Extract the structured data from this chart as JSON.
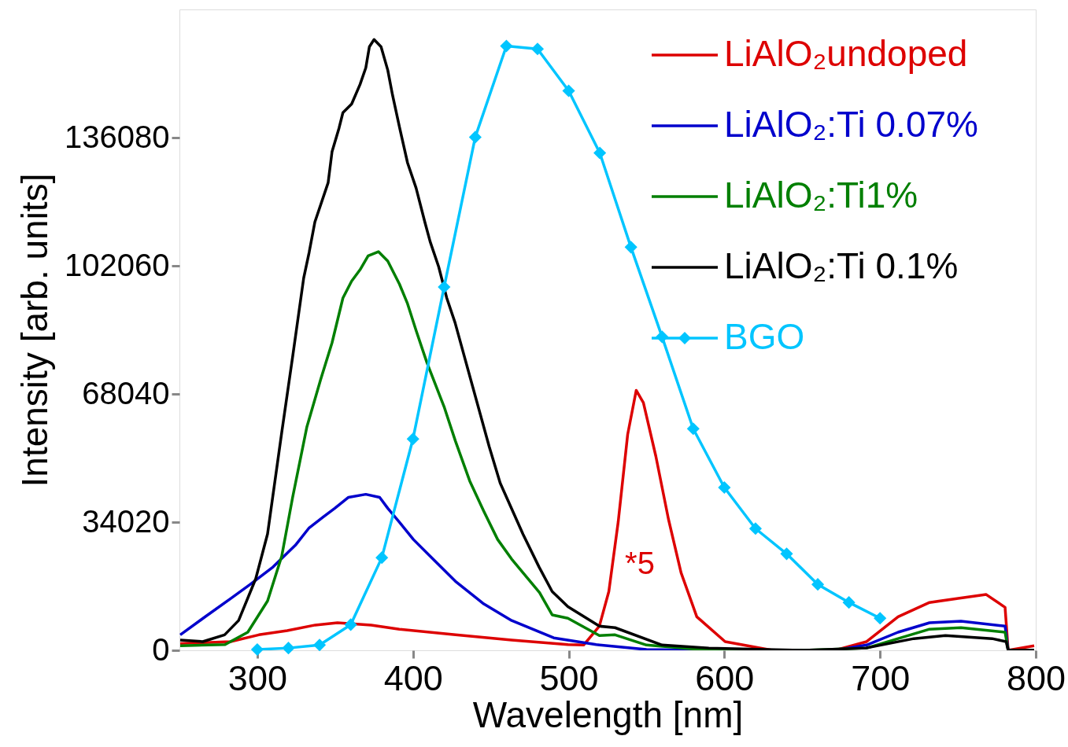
{
  "chart_data": {
    "type": "line",
    "xlabel": "Wavelength [nm]",
    "ylabel": "Intensity [arb. units]",
    "xlim": [
      250,
      800
    ],
    "xticks": [
      300,
      400,
      500,
      600,
      700,
      800
    ],
    "ylim": [
      0,
      170100
    ],
    "yticks": [
      0,
      34020,
      68040,
      102060,
      136080
    ],
    "grid": false,
    "legend": "top right",
    "line_style": "solid",
    "annotations": [
      "*5"
    ],
    "series": [
      {
        "name": "LiAlO₂undoped",
        "color": "#dd0000",
        "x": [
          250.5,
          282.8,
          301,
          319.2,
          337.2,
          351.5,
          373.2,
          391.3,
          427.3,
          463.4,
          499.5,
          509.6,
          519.7,
          525.8,
          531.8,
          537.9,
          543.4,
          548,
          556,
          564.1,
          572.2,
          582.3,
          600.5,
          630.8,
          671.2,
          691.4,
          711.6,
          731.8,
          752,
          768.2,
          780.3,
          782.3,
          799
        ],
        "values": [
          1800,
          2300,
          4100,
          5200,
          6700,
          7300,
          6700,
          5600,
          4100,
          2700,
          1500,
          1400,
          6400,
          15600,
          34000,
          57300,
          69000,
          65700,
          51500,
          34800,
          20600,
          8900,
          2300,
          0,
          0,
          2300,
          8900,
          12700,
          13900,
          14800,
          11400,
          0,
          1200
        ]
      },
      {
        "name": "LiAlO₂:Ti 0.07%",
        "color": "#0000cc",
        "x": [
          250.5,
          265.2,
          282.8,
          295.5,
          310.1,
          324.5,
          333.3,
          342.4,
          349.8,
          358.6,
          369.7,
          378.6,
          383.8,
          391.3,
          400.3,
          412.9,
          427.3,
          445.5,
          463.4,
          490.4,
          517.7,
          550,
          590.4,
          671.2,
          691.4,
          711.6,
          731.8,
          752,
          780.3,
          782.3,
          799
        ],
        "values": [
          4100,
          8500,
          13700,
          17500,
          22100,
          27900,
          32500,
          35400,
          37700,
          40600,
          41400,
          40600,
          37700,
          34000,
          29400,
          24200,
          18300,
          12300,
          7900,
          3300,
          1500,
          200,
          0,
          0,
          1400,
          4800,
          7300,
          7700,
          6400,
          0,
          0
        ]
      },
      {
        "name": "LiAlO₂:Ti1%",
        "color": "#007f00",
        "x": [
          250.5,
          279.3,
          293.9,
          306.6,
          315.7,
          322.7,
          331.8,
          340.8,
          348,
          355,
          360.6,
          366,
          371.2,
          377.8,
          383.8,
          391.3,
          396.5,
          402,
          409,
          420.2,
          427.3,
          436.4,
          445.5,
          454.4,
          463.4,
          481.3,
          489.4,
          499.5,
          519.7,
          529.8,
          550,
          590.4,
          651,
          691.4,
          731.8,
          752,
          780.3,
          782.3,
          799
        ],
        "values": [
          1200,
          1500,
          4800,
          13100,
          25000,
          40600,
          59200,
          72000,
          81600,
          93500,
          98000,
          101000,
          104700,
          105800,
          103300,
          97200,
          92000,
          84900,
          76300,
          64400,
          55500,
          45000,
          36900,
          29400,
          24200,
          15300,
          9400,
          8500,
          3900,
          4100,
          1400,
          0,
          0,
          600,
          5600,
          6000,
          4800,
          0,
          0
        ]
      },
      {
        "name": "LiAlO₂:Ti 0.1%",
        "color": "#000000",
        "x": [
          250.5,
          265,
          279,
          288,
          299,
          306.6,
          315.7,
          322.7,
          329.8,
          333.3,
          337,
          345.5,
          348,
          352.5,
          355,
          360.6,
          366,
          369.7,
          372,
          375,
          379.5,
          383.8,
          386.9,
          391.3,
          396.5,
          402,
          407.6,
          411,
          416.5,
          421.7,
          427,
          438,
          449,
          456,
          470.7,
          481,
          489.4,
          499.5,
          519.7,
          529.8,
          560,
          590,
          651,
          691,
          721.7,
          742,
          772,
          781,
          782.3,
          799
        ],
        "values": [
          2700,
          2300,
          4100,
          7900,
          19000,
          30900,
          57800,
          77900,
          98800,
          105600,
          113700,
          124100,
          132300,
          138600,
          142700,
          145000,
          150200,
          154600,
          160200,
          162100,
          160200,
          154000,
          147300,
          138900,
          129400,
          122700,
          113700,
          108500,
          101800,
          93500,
          87000,
          70500,
          54000,
          44400,
          30800,
          22100,
          15600,
          11600,
          6400,
          6000,
          1400,
          600,
          0,
          600,
          3100,
          3900,
          3100,
          2300,
          0,
          0
        ]
      },
      {
        "name": "BGO",
        "color": "#00c5ff",
        "marker": "diamond",
        "x": [
          300,
          320,
          340,
          360,
          380,
          400,
          420,
          440,
          460,
          480,
          500,
          520,
          540,
          560,
          580,
          600,
          620,
          640,
          660,
          680,
          700
        ],
        "values": [
          200,
          600,
          1400,
          6800,
          24600,
          56100,
          96400,
          136200,
          160400,
          159600,
          148500,
          132000,
          107000,
          83200,
          58800,
          43200,
          32300,
          25600,
          17500,
          12700,
          8500
        ]
      }
    ]
  }
}
